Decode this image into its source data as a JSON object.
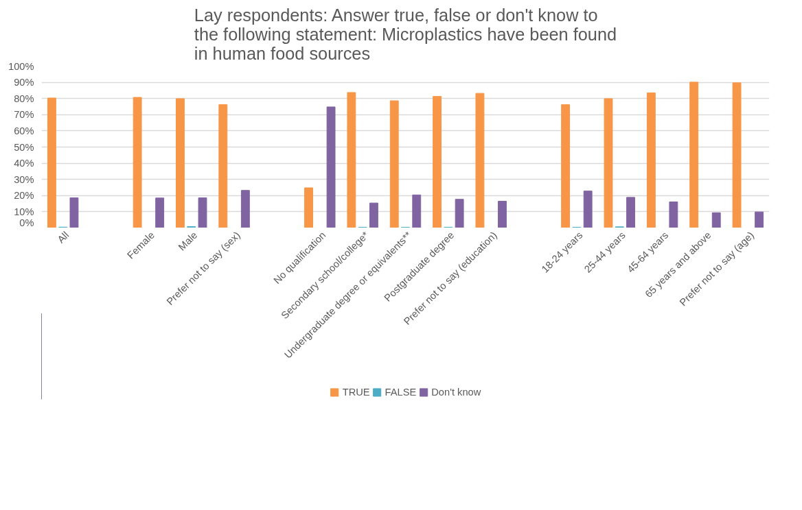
{
  "chart_data": {
    "type": "bar",
    "title": "Lay respondents: Answer true, false or don't know to the following statement: Microplastics have been found in human food sources",
    "categories": [
      "All",
      null,
      "Female",
      "Male",
      "Prefer not to say (sex)",
      null,
      "No qualification",
      "Secondary school/college*",
      "Undergraduate degree or equivalents**",
      "Postgraduate degree",
      "Prefer not to say (education)",
      null,
      "18-24 years",
      "25-44 years",
      "45-64 years",
      "65 years and above",
      "Prefer not to say (age)"
    ],
    "series": [
      {
        "name": "TRUE",
        "color": "#f79646",
        "values": [
          80.3,
          null,
          80.7,
          79.9,
          76.2,
          null,
          24.8,
          83.7,
          78.6,
          81.3,
          83.2,
          null,
          76.2,
          79.9,
          83.5,
          90.1,
          89.7
        ]
      },
      {
        "name": "FALSE",
        "color": "#4bacc6",
        "values": [
          0.5,
          null,
          0,
          0.8,
          0,
          null,
          0,
          0.4,
          0.4,
          0.4,
          0,
          null,
          0.4,
          0.7,
          0,
          0,
          0
        ]
      },
      {
        "name": "Don't know",
        "color": "#8064a2",
        "values": [
          18.6,
          null,
          18.5,
          18.6,
          23.2,
          null,
          74.8,
          15.4,
          20.4,
          17.7,
          16.5,
          null,
          22.8,
          18.9,
          16.1,
          9.4,
          9.9
        ]
      }
    ],
    "ylim": [
      0,
      100
    ],
    "yticks": [
      {
        "value": 0,
        "label": "0%"
      },
      {
        "value": 10,
        "label": "10%"
      },
      {
        "value": 20,
        "label": "20%"
      },
      {
        "value": 30,
        "label": "30%"
      },
      {
        "value": 40,
        "label": "40%"
      },
      {
        "value": 50,
        "label": "50%"
      },
      {
        "value": 60,
        "label": "60%"
      },
      {
        "value": 70,
        "label": "70%"
      },
      {
        "value": 80,
        "label": "80%"
      },
      {
        "value": 90,
        "label": "90%"
      },
      {
        "value": 100,
        "label": "100%"
      }
    ],
    "grid": "y",
    "legend": "bottom"
  }
}
